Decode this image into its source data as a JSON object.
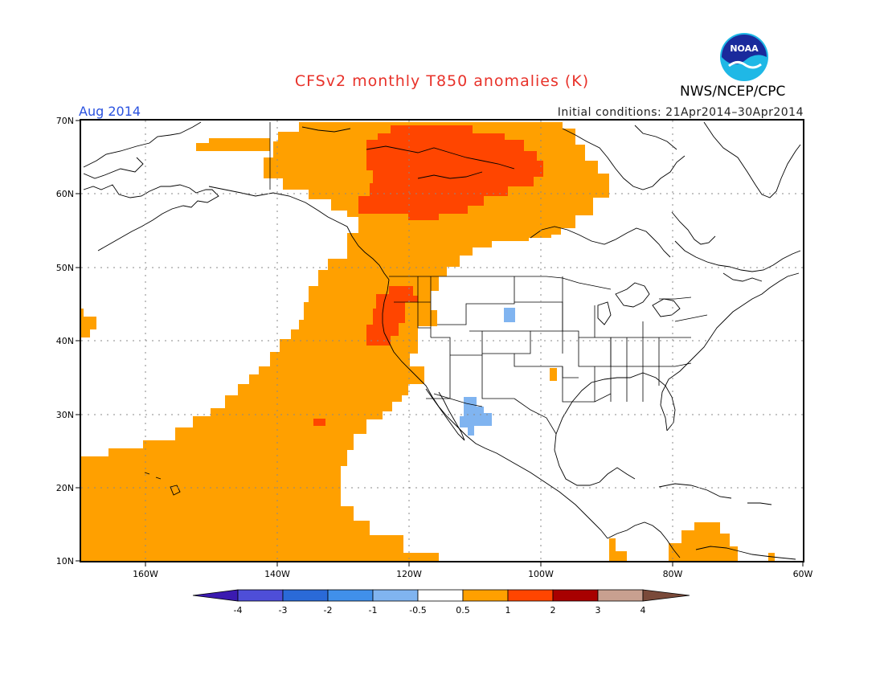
{
  "header": {
    "title": "CFSv2 monthly T850 anomalies (K)",
    "month": "Aug 2014",
    "initial_conditions": "Initial conditions: 21Apr2014–30Apr2014",
    "agency": "NWS/NCEP/CPC",
    "logo_text": "NOAA"
  },
  "colors": {
    "title": "#e8322a",
    "month": "#2a52e0",
    "level_0_5_to_1": "#ffa000",
    "level_1_to_2": "#ff4500",
    "level_neg_1_to_neg_0_5": "#80b4f0"
  },
  "map": {
    "projection": "lat-lon",
    "lon_range": [
      "170W",
      "60W"
    ],
    "lat_range": [
      "10N",
      "70N"
    ],
    "grid": "dotted",
    "lat_labels": [
      "70N",
      "60N",
      "50N",
      "40N",
      "30N",
      "20N",
      "10N"
    ],
    "lon_labels": [
      "160W",
      "140W",
      "120W",
      "100W",
      "80W",
      "60W"
    ]
  },
  "colorbar": {
    "labels": [
      "-4",
      "-3",
      "-2",
      "-1",
      "-0.5",
      "0.5",
      "1",
      "2",
      "3",
      "4"
    ],
    "colors": [
      "#3b1ab0",
      "#4e4ed8",
      "#2a6ad8",
      "#4090ea",
      "#80b4f0",
      "#ffffff",
      "#ffa000",
      "#ff4500",
      "#a80000",
      "#c8a090",
      "#7a4a3a"
    ]
  }
}
